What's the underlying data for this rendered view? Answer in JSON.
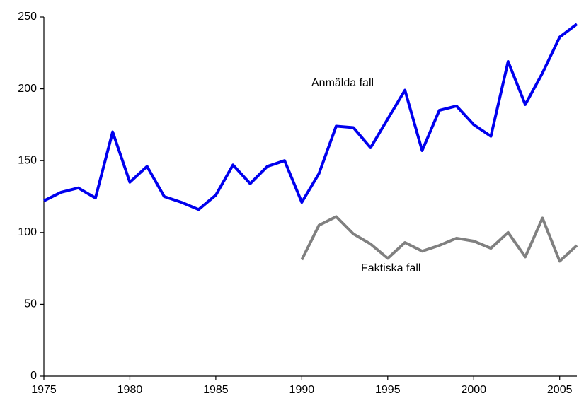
{
  "chart_data": {
    "type": "line",
    "x": [
      1975,
      1976,
      1977,
      1978,
      1979,
      1980,
      1981,
      1982,
      1983,
      1984,
      1985,
      1986,
      1987,
      1988,
      1989,
      1990,
      1991,
      1992,
      1993,
      1994,
      1995,
      1996,
      1997,
      1998,
      1999,
      2000,
      2001,
      2002,
      2003,
      2004,
      2005,
      2006
    ],
    "series": [
      {
        "name": "Anmälda fall",
        "color": "#0000ee",
        "values": [
          122,
          128,
          131,
          124,
          170,
          135,
          146,
          125,
          121,
          116,
          126,
          147,
          134,
          146,
          150,
          121,
          141,
          174,
          173,
          159,
          179,
          199,
          157,
          185,
          188,
          175,
          167,
          219,
          189,
          211,
          236,
          245
        ]
      },
      {
        "name": "Faktiska fall",
        "color": "#808080",
        "values": [
          null,
          null,
          null,
          null,
          null,
          null,
          null,
          null,
          null,
          null,
          null,
          null,
          null,
          null,
          null,
          81,
          105,
          111,
          99,
          92,
          82,
          93,
          87,
          91,
          96,
          94,
          89,
          100,
          83,
          110,
          80,
          91
        ]
      }
    ],
    "xlim": [
      1975,
      2006
    ],
    "xticks": [
      1975,
      1980,
      1985,
      1990,
      1995,
      2000,
      2005
    ],
    "ylim": [
      0,
      250
    ],
    "yticks": [
      0,
      50,
      100,
      150,
      200,
      250
    ],
    "grid": false
  }
}
